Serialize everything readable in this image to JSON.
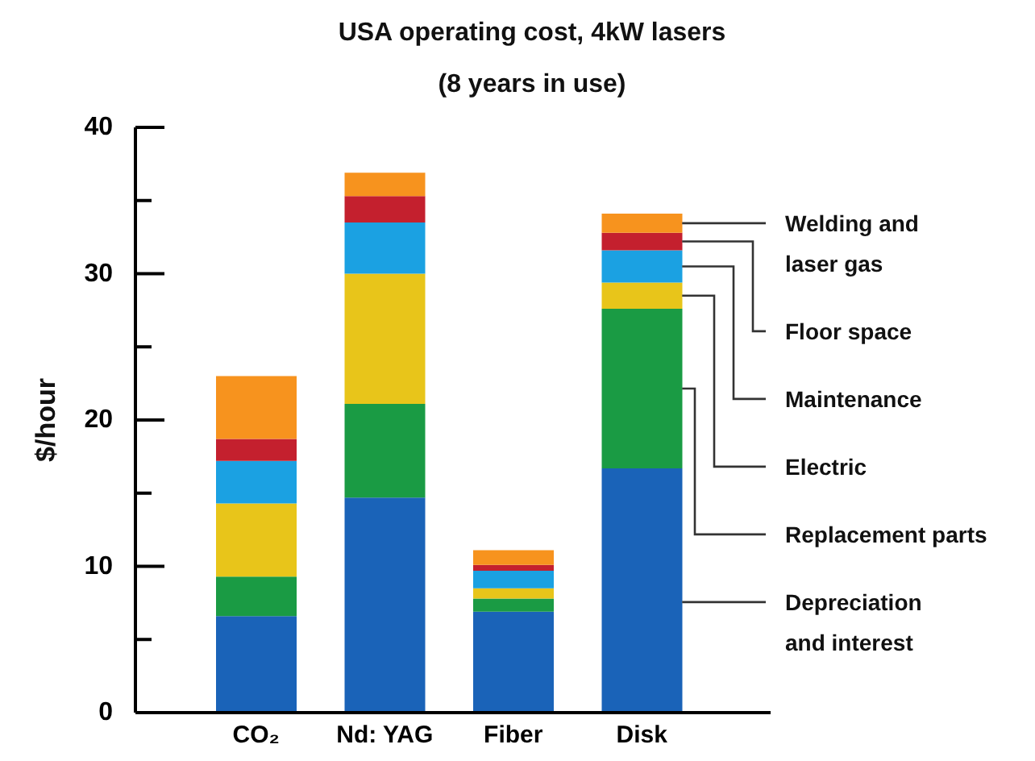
{
  "chart_data": {
    "type": "bar",
    "title": "USA operating cost, 4kW lasers",
    "subtitle": "(8 years in use)",
    "ylabel": "$/hour",
    "categories": [
      "CO₂",
      "Nd: YAG",
      "Fiber",
      "Disk"
    ],
    "stacked": true,
    "series": [
      {
        "name": "Depreciation and interest",
        "color": "#1a63b8",
        "values": [
          6.6,
          14.7,
          6.9,
          16.7
        ]
      },
      {
        "name": "Replacement parts",
        "color": "#1a9b44",
        "values": [
          2.7,
          6.4,
          0.9,
          10.9
        ]
      },
      {
        "name": "Electric",
        "color": "#e8c51a",
        "values": [
          5.0,
          8.9,
          0.7,
          1.8
        ]
      },
      {
        "name": "Maintenance",
        "color": "#1ba1e2",
        "values": [
          2.9,
          3.5,
          1.2,
          2.2
        ]
      },
      {
        "name": "Floor space",
        "color": "#c4202e",
        "values": [
          1.5,
          1.8,
          0.4,
          1.2
        ]
      },
      {
        "name": "Welding and laser gas",
        "color": "#f7931e",
        "values": [
          4.3,
          1.6,
          1.0,
          1.3
        ]
      }
    ],
    "ylim": [
      0,
      40
    ],
    "yticks": [
      0,
      {
        "value": 5,
        "label": null
      },
      10,
      {
        "value": 15,
        "label": null
      },
      20,
      {
        "value": 25,
        "label": null
      },
      30,
      {
        "value": 35,
        "label": null
      },
      40
    ],
    "legend": "right"
  }
}
